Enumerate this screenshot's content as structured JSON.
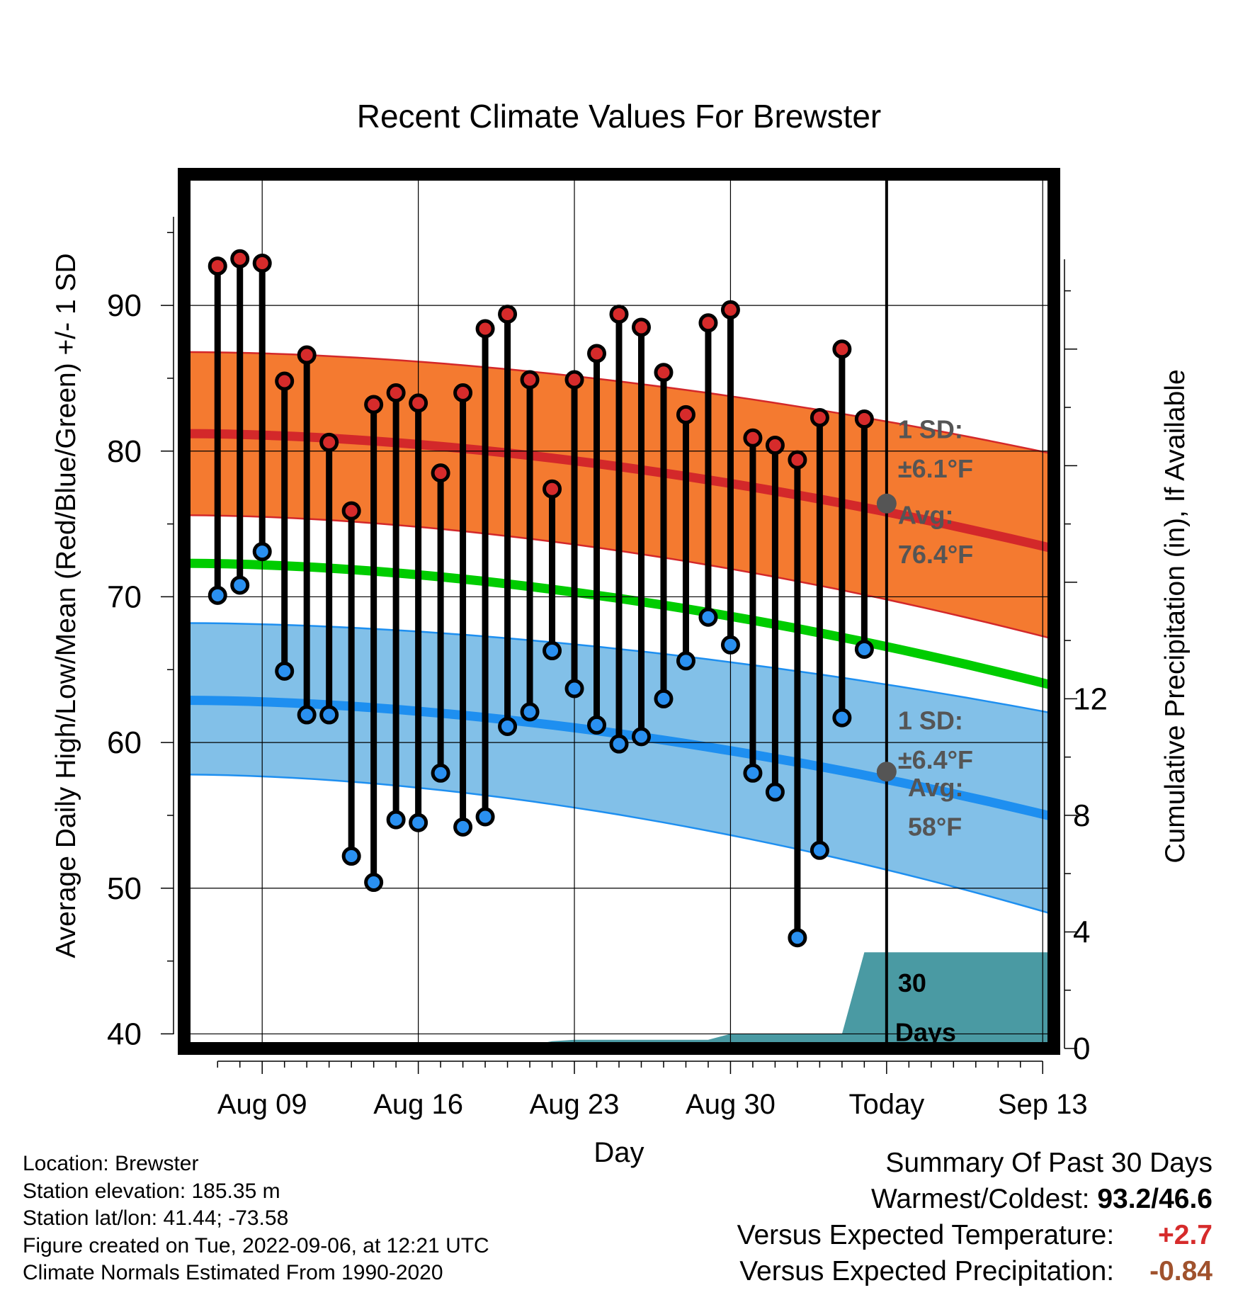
{
  "chart_data": {
    "type": "line",
    "title": "Recent Climate Values For Brewster",
    "xlabel": "Day",
    "ylabel": "Average Daily High/Low/Mean (Red/Blue/Green) +/- 1 SD",
    "y2label": "Cumulative Precipitation (in), If Available",
    "ylim": [
      39,
      99
    ],
    "y2lim": [
      0,
      30
    ],
    "xlim_day_of_month_aug": [
      5.5,
      44.5
    ],
    "x_ticks": [
      {
        "label": "Aug 09",
        "day": 9
      },
      {
        "label": "Aug 16",
        "day": 16
      },
      {
        "label": "Aug 23",
        "day": 23
      },
      {
        "label": "Aug 30",
        "day": 30
      },
      {
        "label": "Today",
        "day": 37
      },
      {
        "label": "Sep 13",
        "day": 44
      }
    ],
    "y_ticks": [
      40,
      50,
      60,
      70,
      80,
      90
    ],
    "y2_ticks": [
      0,
      4,
      8,
      12
    ],
    "grid": true,
    "today_day": 37,
    "observed": {
      "days": [
        7,
        8,
        9,
        10,
        11,
        12,
        13,
        14,
        15,
        16,
        17,
        18,
        19,
        20,
        21,
        22,
        23,
        24,
        25,
        26,
        27,
        28,
        29,
        30,
        31,
        32,
        33,
        34,
        35,
        36
      ],
      "highs": [
        92.7,
        93.2,
        92.9,
        84.8,
        86.6,
        80.6,
        75.9,
        83.2,
        84.0,
        83.3,
        78.5,
        84.0,
        88.4,
        89.4,
        84.9,
        77.4,
        84.9,
        86.7,
        89.4,
        88.5,
        85.4,
        82.5,
        88.8,
        89.7,
        80.9,
        80.4,
        79.4,
        82.3,
        87.0,
        82.2
      ],
      "lows": [
        70.1,
        70.8,
        73.1,
        64.9,
        61.9,
        61.9,
        52.2,
        50.4,
        54.7,
        54.5,
        57.9,
        54.2,
        54.9,
        61.1,
        62.1,
        66.3,
        63.7,
        61.2,
        59.9,
        60.4,
        63.0,
        65.6,
        68.6,
        66.7,
        57.9,
        56.6,
        46.6,
        52.6,
        61.7,
        66.4
      ]
    },
    "normals": {
      "days": [
        5.5,
        44.5
      ],
      "high_avg": [
        81.2,
        73.3
      ],
      "high_upper": [
        86.8,
        79.8
      ],
      "high_lower": [
        75.6,
        67.1
      ],
      "mean_avg": [
        72.3,
        63.9
      ],
      "low_avg": [
        62.9,
        54.9
      ],
      "low_upper": [
        68.2,
        62.0
      ],
      "low_lower": [
        57.8,
        48.2
      ]
    },
    "precip_cumulative": {
      "days": [
        5.5,
        8,
        13,
        16,
        17,
        21,
        22,
        23,
        29,
        30,
        35,
        36,
        44.5
      ],
      "values": [
        0,
        0,
        0.05,
        0.05,
        0.1,
        0.1,
        0.25,
        0.3,
        0.3,
        0.5,
        0.5,
        3.3,
        3.3
      ]
    },
    "annotations": {
      "high_sd": [
        "1 SD:",
        "±6.1°F"
      ],
      "high_avg": [
        "Avg:",
        "76.4°F"
      ],
      "low_sd": [
        "1 SD:",
        "±6.4°F"
      ],
      "low_avg": [
        "Avg:",
        "58°F"
      ],
      "days": [
        "30",
        "Days"
      ]
    },
    "today_marker_values": {
      "high": 76.4,
      "low": 58.0
    },
    "colors": {
      "high_band": "#f47a30",
      "high_line": "#d3282a",
      "low_band": "#82c0e8",
      "low_line": "#1e8ff0",
      "mean_line": "#00cc00",
      "precip": "#4a9aa3",
      "high_dot": "#d62b2b",
      "low_dot": "#2a90f0",
      "annotation": "#555555"
    }
  },
  "info": {
    "location": "Location: Brewster",
    "elevation": "Station elevation: 185.35 m",
    "latlon": "Station lat/lon: 41.44; -73.58",
    "created": "Figure created on Tue, 2022-09-06, at 12:21 UTC",
    "normals": "Climate Normals Estimated From 1990-2020"
  },
  "summary": {
    "title": "Summary Of Past 30 Days",
    "warmest_label": "Warmest/Coldest:",
    "warmest_value": "93.2/46.6",
    "temp_label": "Versus Expected Temperature:",
    "temp_value": "+2.7",
    "temp_color": "#d62b2b",
    "precip_label": "Versus Expected Precipitation:",
    "precip_value": "-0.84",
    "precip_color": "#a0522d"
  }
}
